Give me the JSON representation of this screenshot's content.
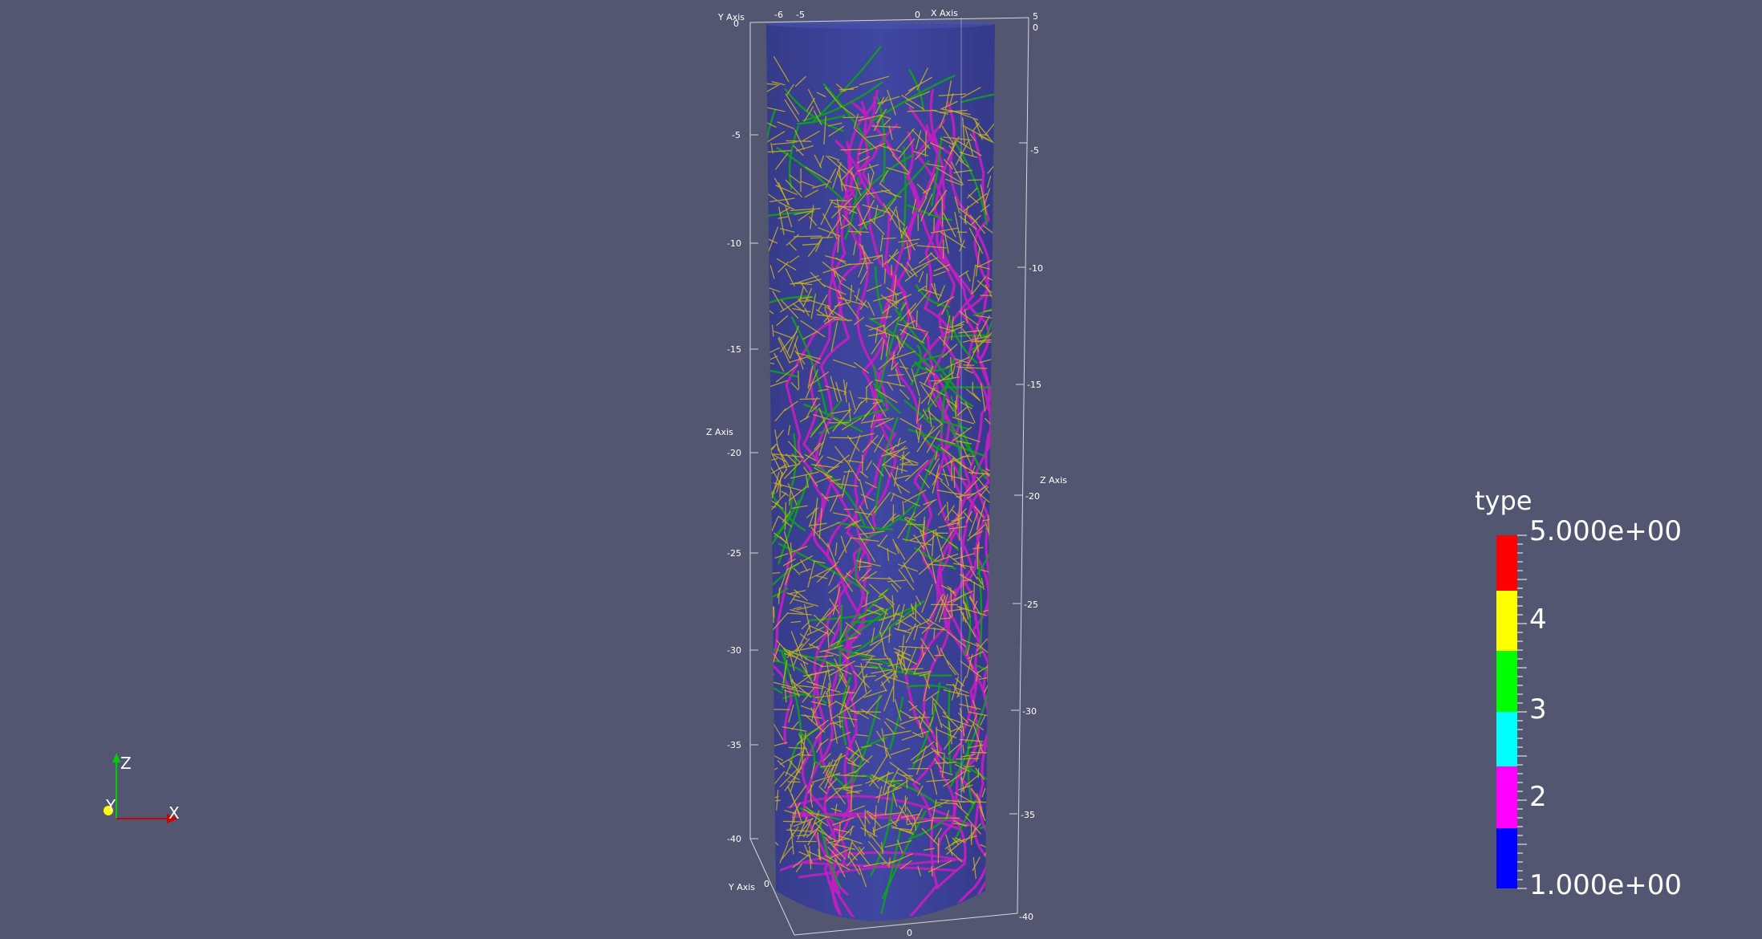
{
  "scene": {
    "background": "#525670",
    "cylinder_color": "#3a3f96",
    "root_type_colors": {
      "type2": "#c020c0",
      "type3": "#10a020",
      "type4": "#c8b020"
    }
  },
  "axes": {
    "x_axis_label": "X Axis",
    "y_axis_label_top": "Y Axis",
    "y_axis_label_bottom": "Y Axis",
    "z_axis_label_left": "Z Axis",
    "z_axis_label_right": "Z Axis",
    "top_ticks": [
      "-6",
      "-5",
      "0",
      "5"
    ],
    "top_right_zero": "0",
    "top_left_zero": "0",
    "left_z_ticks": [
      "-5",
      "-10",
      "-15",
      "-20",
      "-25",
      "-30",
      "-35",
      "-40"
    ],
    "right_z_ticks": [
      "-5",
      "-10",
      "-15",
      "-20",
      "-25",
      "-30",
      "-35",
      "-40"
    ],
    "bottom_y_tick": "0",
    "bottom_x_tick": "0"
  },
  "legend": {
    "title": "type",
    "max_label": "5.000e+00",
    "label_4": "4",
    "label_3": "3",
    "label_2": "2",
    "min_label": "1.000e+00",
    "bands": [
      {
        "color": "#ff0000"
      },
      {
        "color": "#ffff00"
      },
      {
        "color": "#00ff00"
      },
      {
        "color": "#00ffff"
      },
      {
        "color": "#ff00ff"
      },
      {
        "color": "#0000ff"
      }
    ]
  },
  "orientation": {
    "z_label": "Z",
    "y_label": "Y",
    "x_label": "X",
    "z_color": "#00cc00",
    "y_color": "#ffff00",
    "x_color": "#cc0000"
  }
}
